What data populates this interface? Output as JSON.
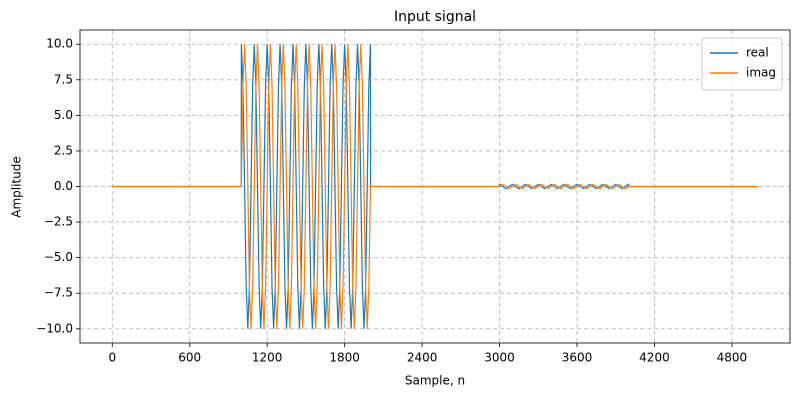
{
  "chart_data": {
    "type": "line",
    "title": "Input signal",
    "x_label": "Sample, n",
    "y_label": "Amplitude",
    "x": [
      0,
      999,
      1000,
      1012.5,
      1025,
      1037.5,
      1050,
      1062.5,
      1075,
      1087.5,
      1100,
      1112.5,
      1125,
      1137.5,
      1150,
      1162.5,
      1175,
      1187.5,
      1200,
      1212.5,
      1225,
      1237.5,
      1250,
      1262.5,
      1275,
      1287.5,
      1300,
      1312.5,
      1325,
      1337.5,
      1350,
      1362.5,
      1375,
      1387.5,
      1400,
      1412.5,
      1425,
      1437.5,
      1450,
      1462.5,
      1475,
      1487.5,
      1500,
      1512.5,
      1525,
      1537.5,
      1550,
      1562.5,
      1575,
      1587.5,
      1600,
      1612.5,
      1625,
      1637.5,
      1650,
      1662.5,
      1675,
      1687.5,
      1700,
      1712.5,
      1725,
      1737.5,
      1750,
      1762.5,
      1775,
      1787.5,
      1800,
      1812.5,
      1825,
      1837.5,
      1850,
      1862.5,
      1875,
      1887.5,
      1900,
      1912.5,
      1925,
      1937.5,
      1950,
      1962.5,
      1975,
      1987.5,
      2000,
      2001,
      2999,
      3000,
      3025,
      3050,
      3075,
      3100,
      3125,
      3150,
      3175,
      3200,
      3225,
      3250,
      3275,
      3300,
      3325,
      3350,
      3375,
      3400,
      3425,
      3450,
      3475,
      3500,
      3525,
      3550,
      3575,
      3600,
      3625,
      3650,
      3675,
      3700,
      3725,
      3750,
      3775,
      3800,
      3825,
      3850,
      3875,
      3900,
      3925,
      3950,
      3975,
      4000,
      4001,
      5000
    ],
    "series": [
      {
        "name": "real",
        "color": "#1f77b4",
        "values": [
          0,
          0,
          10,
          7.07,
          0,
          -7.07,
          -10,
          -7.07,
          0,
          7.07,
          10,
          7.07,
          0,
          -7.07,
          -10,
          -7.07,
          0,
          7.07,
          10,
          7.07,
          0,
          -7.07,
          -10,
          -7.07,
          0,
          7.07,
          10,
          7.07,
          0,
          -7.07,
          -10,
          -7.07,
          0,
          7.07,
          10,
          7.07,
          0,
          -7.07,
          -10,
          -7.07,
          0,
          7.07,
          10,
          7.07,
          0,
          -7.07,
          -10,
          -7.07,
          0,
          7.07,
          10,
          7.07,
          0,
          -7.07,
          -10,
          -7.07,
          0,
          7.07,
          10,
          7.07,
          0,
          -7.07,
          -10,
          -7.07,
          0,
          7.07,
          10,
          7.07,
          0,
          -7.07,
          -10,
          -7.07,
          0,
          7.07,
          10,
          7.07,
          0,
          -7.07,
          -10,
          -7.07,
          0,
          7.07,
          10,
          0,
          0,
          0.15,
          0,
          -0.15,
          0,
          0.15,
          0,
          -0.15,
          0,
          0.15,
          0,
          -0.15,
          0,
          0.15,
          0,
          -0.15,
          0,
          0.15,
          0,
          -0.15,
          0,
          0.15,
          0,
          -0.15,
          0,
          0.15,
          0,
          -0.15,
          0,
          0.15,
          0,
          -0.15,
          0,
          0.15,
          0,
          -0.15,
          0,
          0.15,
          0,
          -0.15,
          0,
          0.15,
          0,
          0
        ]
      },
      {
        "name": "imag",
        "color": "#ff7f0e",
        "values": [
          0,
          0,
          0,
          7.07,
          10,
          7.07,
          0,
          -7.07,
          -10,
          -7.07,
          0,
          7.07,
          10,
          7.07,
          0,
          -7.07,
          -10,
          -7.07,
          0,
          7.07,
          10,
          7.07,
          0,
          -7.07,
          -10,
          -7.07,
          0,
          7.07,
          10,
          7.07,
          0,
          -7.07,
          -10,
          -7.07,
          0,
          7.07,
          10,
          7.07,
          0,
          -7.07,
          -10,
          -7.07,
          0,
          7.07,
          10,
          7.07,
          0,
          -7.07,
          -10,
          -7.07,
          0,
          7.07,
          10,
          7.07,
          0,
          -7.07,
          -10,
          -7.07,
          0,
          7.07,
          10,
          7.07,
          0,
          -7.07,
          -10,
          -7.07,
          0,
          7.07,
          10,
          7.07,
          0,
          -7.07,
          -10,
          -7.07,
          0,
          7.07,
          10,
          7.07,
          0,
          -7.07,
          -10,
          -7.07,
          0,
          0,
          0,
          0,
          0.15,
          0,
          -0.15,
          0,
          0.15,
          0,
          -0.15,
          0,
          0.15,
          0,
          -0.15,
          0,
          0.15,
          0,
          -0.15,
          0,
          0.15,
          0,
          -0.15,
          0,
          0.15,
          0,
          -0.15,
          0,
          0.15,
          0,
          -0.15,
          0,
          0.15,
          0,
          -0.15,
          0,
          0.15,
          0,
          -0.15,
          0,
          0.15,
          0,
          -0.15,
          0,
          0,
          0
        ]
      }
    ],
    "xlim": [
      -250,
      5250
    ],
    "xticks": [
      0,
      600,
      1200,
      1800,
      2400,
      3000,
      3600,
      4200,
      4800
    ],
    "ylim": [
      -11,
      11
    ],
    "yticks": [
      {
        "value": -10,
        "label": "−10.0"
      },
      {
        "value": -7.5,
        "label": "−7.5"
      },
      {
        "value": -5,
        "label": "−5.0"
      },
      {
        "value": -2.5,
        "label": "−2.5"
      },
      {
        "value": 0,
        "label": "0.0"
      },
      {
        "value": 2.5,
        "label": "2.5"
      },
      {
        "value": 5,
        "label": "5.0"
      },
      {
        "value": 7.5,
        "label": "7.5"
      },
      {
        "value": 10,
        "label": "10.0"
      }
    ],
    "grid": true,
    "legend": "upper right"
  }
}
